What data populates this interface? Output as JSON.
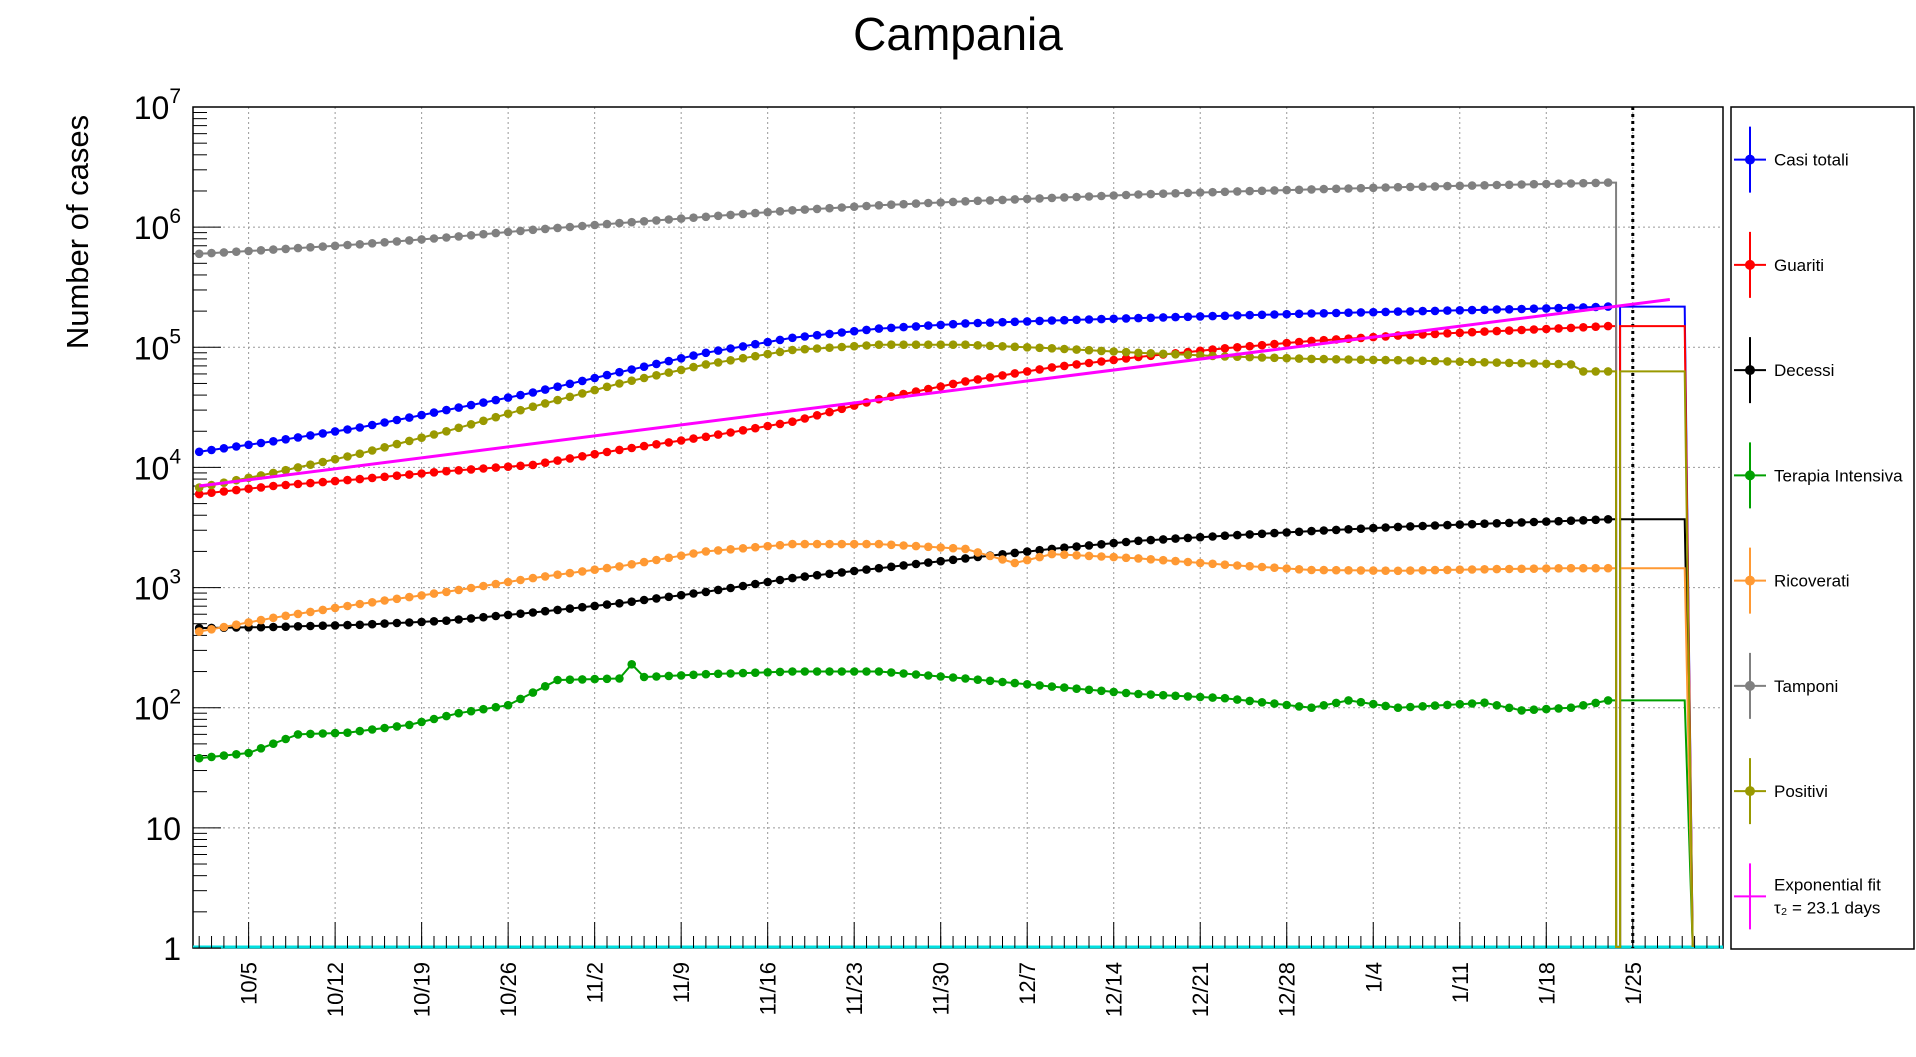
{
  "chart_data": {
    "type": "line",
    "title": "Campania",
    "ylabel": "Number of cases",
    "xlabel": "",
    "log_y": true,
    "ylim": [
      1,
      10000000
    ],
    "y_tick_labels": [
      {
        "value": 1,
        "base": "1",
        "exp": ""
      },
      {
        "value": 10,
        "base": "10",
        "exp": ""
      },
      {
        "value": 100,
        "base": "10",
        "exp": "2"
      },
      {
        "value": 1000,
        "base": "10",
        "exp": "3"
      },
      {
        "value": 10000,
        "base": "10",
        "exp": "4"
      },
      {
        "value": 100000,
        "base": "10",
        "exp": "5"
      },
      {
        "value": 1000000,
        "base": "10",
        "exp": "6"
      },
      {
        "value": 10000000,
        "base": "10",
        "exp": "7"
      }
    ],
    "x_range": [
      "2020-10-01",
      "2021-01-30"
    ],
    "x_tick_labels": [
      {
        "date": "2020-10-05",
        "label": "10/5"
      },
      {
        "date": "2020-10-12",
        "label": "10/12"
      },
      {
        "date": "2020-10-19",
        "label": "10/19"
      },
      {
        "date": "2020-10-26",
        "label": "10/26"
      },
      {
        "date": "2020-11-02",
        "label": "11/2"
      },
      {
        "date": "2020-11-09",
        "label": "11/9"
      },
      {
        "date": "2020-11-16",
        "label": "11/16"
      },
      {
        "date": "2020-11-23",
        "label": "11/23"
      },
      {
        "date": "2020-11-30",
        "label": "11/30"
      },
      {
        "date": "2020-12-07",
        "label": "12/7"
      },
      {
        "date": "2020-12-14",
        "label": "12/14"
      },
      {
        "date": "2020-12-21",
        "label": "12/21"
      },
      {
        "date": "2020-12-28",
        "label": "12/28"
      },
      {
        "date": "2021-01-04",
        "label": "1/4"
      },
      {
        "date": "2021-01-11",
        "label": "1/11"
      },
      {
        "date": "2021-01-18",
        "label": "1/18"
      },
      {
        "date": "2021-01-25",
        "label": "1/25"
      }
    ],
    "grid": true,
    "vertical_marker_date": "2021-01-25",
    "legend_position": "right",
    "series": [
      {
        "name": "Casi totali",
        "color": "#0000ff",
        "points": [
          [
            "2020-10-01",
            13500
          ],
          [
            "2020-10-07",
            16500
          ],
          [
            "2020-10-14",
            21500
          ],
          [
            "2020-10-21",
            30000
          ],
          [
            "2020-10-28",
            42000
          ],
          [
            "2020-11-04",
            62000
          ],
          [
            "2020-11-11",
            90000
          ],
          [
            "2020-11-18",
            120000
          ],
          [
            "2020-11-25",
            143000
          ],
          [
            "2020-12-02",
            158000
          ],
          [
            "2020-12-09",
            167000
          ],
          [
            "2020-12-16",
            175000
          ],
          [
            "2020-12-23",
            183000
          ],
          [
            "2020-12-30",
            191000
          ],
          [
            "2021-01-06",
            198000
          ],
          [
            "2021-01-13",
            205000
          ],
          [
            "2021-01-20",
            213000
          ],
          [
            "2021-01-23",
            218000
          ]
        ],
        "plateau": 218000
      },
      {
        "name": "Guariti",
        "color": "#ff0000",
        "points": [
          [
            "2020-10-01",
            6000
          ],
          [
            "2020-10-07",
            7000
          ],
          [
            "2020-10-14",
            8000
          ],
          [
            "2020-10-21",
            9300
          ],
          [
            "2020-10-28",
            10500
          ],
          [
            "2020-11-04",
            14000
          ],
          [
            "2020-11-11",
            18000
          ],
          [
            "2020-11-18",
            24000
          ],
          [
            "2020-11-25",
            37000
          ],
          [
            "2020-12-02",
            52000
          ],
          [
            "2020-12-09",
            68000
          ],
          [
            "2020-12-16",
            83000
          ],
          [
            "2020-12-23",
            98000
          ],
          [
            "2020-12-30",
            113000
          ],
          [
            "2021-01-06",
            125000
          ],
          [
            "2021-01-13",
            135000
          ],
          [
            "2021-01-20",
            145000
          ],
          [
            "2021-01-23",
            150000
          ]
        ],
        "plateau": 150000
      },
      {
        "name": "Decessi",
        "color": "#000000",
        "points": [
          [
            "2020-10-01",
            460
          ],
          [
            "2020-10-07",
            470
          ],
          [
            "2020-10-14",
            490
          ],
          [
            "2020-10-21",
            530
          ],
          [
            "2020-10-28",
            620
          ],
          [
            "2020-11-04",
            740
          ],
          [
            "2020-11-11",
            920
          ],
          [
            "2020-11-18",
            1200
          ],
          [
            "2020-11-25",
            1450
          ],
          [
            "2020-12-02",
            1750
          ],
          [
            "2020-12-09",
            2100
          ],
          [
            "2020-12-16",
            2450
          ],
          [
            "2020-12-23",
            2700
          ],
          [
            "2020-12-30",
            2950
          ],
          [
            "2021-01-06",
            3200
          ],
          [
            "2021-01-13",
            3400
          ],
          [
            "2021-01-20",
            3600
          ],
          [
            "2021-01-23",
            3700
          ]
        ],
        "plateau": 3700
      },
      {
        "name": "Terapia Intensiva",
        "color": "#00a000",
        "points": [
          [
            "2020-10-01",
            38
          ],
          [
            "2020-10-05",
            42
          ],
          [
            "2020-10-09",
            60
          ],
          [
            "2020-10-13",
            62
          ],
          [
            "2020-10-18",
            72
          ],
          [
            "2020-10-22",
            90
          ],
          [
            "2020-10-26",
            105
          ],
          [
            "2020-10-30",
            170
          ],
          [
            "2020-11-04",
            175
          ],
          [
            "2020-11-05",
            230
          ],
          [
            "2020-11-06",
            180
          ],
          [
            "2020-11-11",
            190
          ],
          [
            "2020-11-18",
            200
          ],
          [
            "2020-11-25",
            200
          ],
          [
            "2020-12-02",
            175
          ],
          [
            "2020-12-09",
            150
          ],
          [
            "2020-12-16",
            130
          ],
          [
            "2020-12-23",
            120
          ],
          [
            "2020-12-30",
            100
          ],
          [
            "2021-01-02",
            115
          ],
          [
            "2021-01-06",
            100
          ],
          [
            "2021-01-13",
            110
          ],
          [
            "2021-01-16",
            95
          ],
          [
            "2021-01-20",
            100
          ],
          [
            "2021-01-23",
            115
          ]
        ],
        "plateau": 115
      },
      {
        "name": "Ricoverati",
        "color": "#ff9933",
        "points": [
          [
            "2020-10-01",
            430
          ],
          [
            "2020-10-07",
            560
          ],
          [
            "2020-10-14",
            730
          ],
          [
            "2020-10-21",
            920
          ],
          [
            "2020-10-28",
            1200
          ],
          [
            "2020-11-04",
            1500
          ],
          [
            "2020-11-11",
            2000
          ],
          [
            "2020-11-18",
            2300
          ],
          [
            "2020-11-25",
            2300
          ],
          [
            "2020-12-02",
            2100
          ],
          [
            "2020-12-06",
            1600
          ],
          [
            "2020-12-09",
            1900
          ],
          [
            "2020-12-16",
            1750
          ],
          [
            "2020-12-23",
            1550
          ],
          [
            "2020-12-30",
            1400
          ],
          [
            "2021-01-06",
            1380
          ],
          [
            "2021-01-13",
            1420
          ],
          [
            "2021-01-20",
            1450
          ],
          [
            "2021-01-23",
            1450
          ]
        ],
        "plateau": 1450
      },
      {
        "name": "Tamponi",
        "color": "#808080",
        "points": [
          [
            "2020-10-01",
            600000
          ],
          [
            "2020-10-07",
            650000
          ],
          [
            "2020-10-14",
            720000
          ],
          [
            "2020-10-21",
            820000
          ],
          [
            "2020-10-28",
            950000
          ],
          [
            "2020-11-04",
            1080000
          ],
          [
            "2020-11-11",
            1220000
          ],
          [
            "2020-11-18",
            1380000
          ],
          [
            "2020-11-25",
            1520000
          ],
          [
            "2020-12-02",
            1640000
          ],
          [
            "2020-12-09",
            1750000
          ],
          [
            "2020-12-16",
            1870000
          ],
          [
            "2020-12-23",
            1970000
          ],
          [
            "2020-12-30",
            2060000
          ],
          [
            "2021-01-06",
            2150000
          ],
          [
            "2021-01-13",
            2230000
          ],
          [
            "2021-01-20",
            2310000
          ],
          [
            "2021-01-23",
            2350000
          ]
        ],
        "plateau": null
      },
      {
        "name": "Positivi",
        "color": "#999900",
        "points": [
          [
            "2020-10-01",
            6800
          ],
          [
            "2020-10-07",
            9000
          ],
          [
            "2020-10-14",
            13000
          ],
          [
            "2020-10-21",
            20000
          ],
          [
            "2020-10-28",
            32000
          ],
          [
            "2020-11-04",
            50000
          ],
          [
            "2020-11-11",
            72000
          ],
          [
            "2020-11-18",
            95000
          ],
          [
            "2020-11-25",
            105000
          ],
          [
            "2020-12-02",
            105000
          ],
          [
            "2020-12-09",
            98000
          ],
          [
            "2020-12-16",
            90000
          ],
          [
            "2020-12-23",
            84000
          ],
          [
            "2020-12-30",
            80000
          ],
          [
            "2021-01-06",
            78000
          ],
          [
            "2021-01-13",
            75000
          ],
          [
            "2021-01-20",
            72000
          ],
          [
            "2021-01-21",
            63000
          ],
          [
            "2021-01-23",
            63000
          ]
        ],
        "plateau": 63000
      },
      {
        "name": "Exponential fit",
        "subtitle": "τ₂ = 23.1 days",
        "color": "#ff00ff",
        "points": [
          [
            "2020-10-01",
            7000
          ],
          [
            "2021-01-28",
            250000
          ]
        ],
        "plateau": null
      }
    ]
  }
}
